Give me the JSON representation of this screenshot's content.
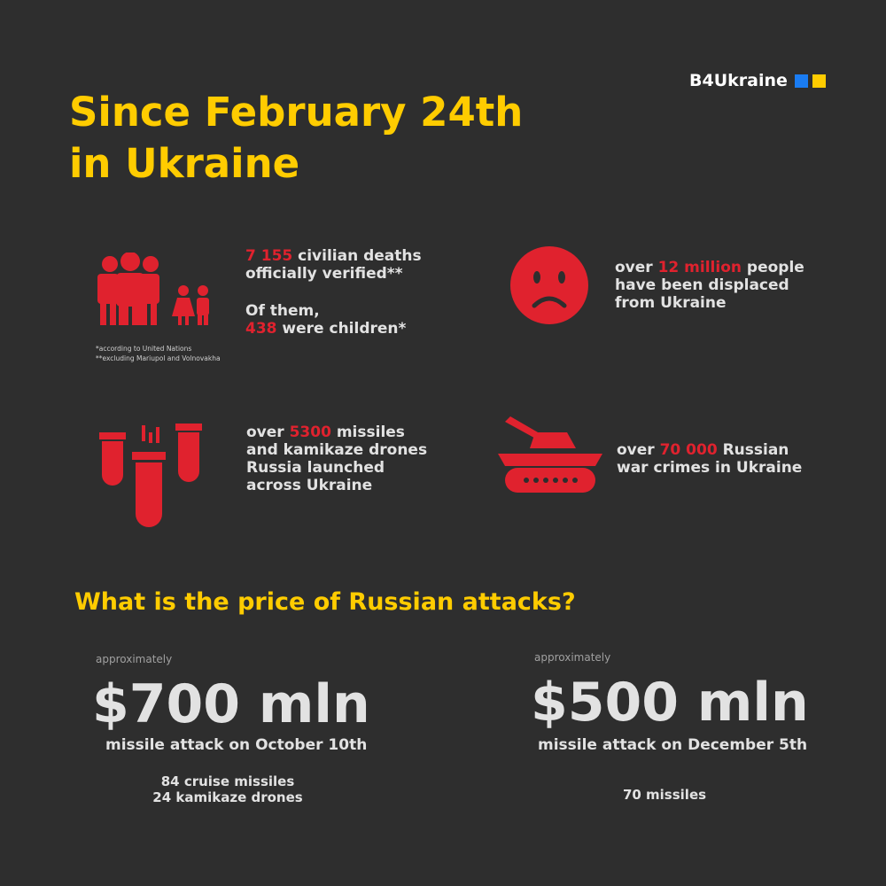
{
  "logo": {
    "text": "B4Ukraine",
    "colors": [
      "#1a7cf2",
      "#ffcc00"
    ]
  },
  "title": {
    "line1": "Since February 24th",
    "line2": "in Ukraine"
  },
  "stats": {
    "deaths": {
      "num": "7 155",
      "text1": " civilian deaths",
      "text2": "officially verified**",
      "text3": "Of them,",
      "num2": "438",
      "text4": " were children*",
      "note1": "*according to United Nations",
      "note2": "**excluding Mariupol and Volnovakha",
      "icon": "family-icon"
    },
    "displaced": {
      "pre": "over ",
      "num": "12 million",
      "text1": " people",
      "text2": "have been displaced",
      "text3": "from Ukraine",
      "icon": "sad-face-icon"
    },
    "missiles": {
      "pre": "over ",
      "num": "5300",
      "text1": " missiles",
      "text2": "and kamikaze drones",
      "text3": "Russia launched",
      "text4": "across Ukraine",
      "icon": "bombs-icon"
    },
    "crimes": {
      "pre": "over ",
      "num": "70 000",
      "text1": " Russian",
      "text2": "war crimes in Ukraine",
      "icon": "tank-icon"
    }
  },
  "price": {
    "heading": "What is the price of Russian attacks?",
    "items": [
      {
        "approx": "approximately",
        "amount": "$700 mln",
        "label": "missile attack on October 10th",
        "details": [
          "84 cruise missiles",
          "24 kamikaze drones"
        ]
      },
      {
        "approx": "approximately",
        "amount": "$500 mln",
        "label": "missile attack on December 5th",
        "details": [
          "70 missiles"
        ]
      }
    ]
  },
  "colors": {
    "accent": "#ffcc00",
    "red": "#e0222e",
    "background": "#2e2e2e"
  }
}
